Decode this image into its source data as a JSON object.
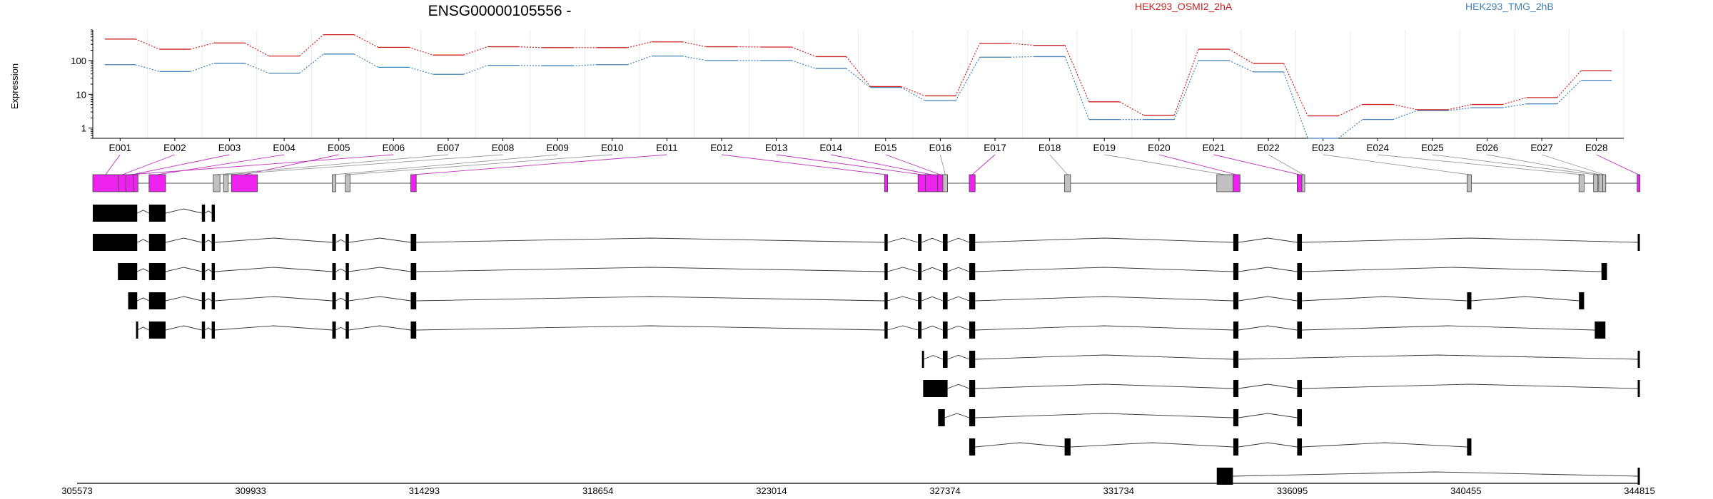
{
  "chart_data": {
    "type": "line",
    "title": "ENSG00000105556 -",
    "ylabel": "Expression",
    "y_scale": "log",
    "yticks": [
      "1",
      "10",
      "100"
    ],
    "ylim": [
      0.5,
      800
    ],
    "grid": true,
    "legend_placement": "top-right",
    "categories": [
      "E001",
      "E002",
      "E003",
      "E004",
      "E005",
      "E006",
      "E007",
      "E008",
      "E009",
      "E010",
      "E011",
      "E012",
      "E013",
      "E014",
      "E015",
      "E016",
      "E017",
      "E018",
      "E019",
      "E020",
      "E021",
      "E022",
      "E023",
      "E024",
      "E025",
      "E026",
      "E027",
      "E028"
    ],
    "series": [
      {
        "name": "HEK293_OSMI2_2hA",
        "color": "#cc2222",
        "values": [
          430,
          215,
          330,
          135,
          580,
          245,
          145,
          255,
          240,
          240,
          355,
          255,
          250,
          130,
          17,
          9,
          320,
          280,
          6,
          2.4,
          215,
          82,
          2.3,
          5,
          3.5,
          5,
          8,
          50
        ]
      },
      {
        "name": "HEK293_TMG_2hB",
        "color": "#4682b4",
        "values": [
          75,
          47,
          83,
          42,
          155,
          63,
          39,
          72,
          70,
          75,
          135,
          100,
          100,
          58,
          16,
          6.5,
          125,
          130,
          1.8,
          1.8,
          100,
          46,
          0.5,
          1.8,
          3.3,
          4,
          5.2,
          26
        ]
      }
    ],
    "genomic_axis": {
      "range": [
        305573,
        344815
      ],
      "tick_labels": [
        "305573",
        "309933",
        "314293",
        "318654",
        "323014",
        "327374",
        "331734",
        "336095",
        "340455",
        "344815"
      ]
    },
    "gene_model_exons": [
      {
        "label": "E001",
        "start": 305573,
        "end": 306220,
        "status": "significant"
      },
      {
        "label": "E002",
        "start": 306220,
        "end": 306420,
        "status": "significant"
      },
      {
        "label": "E003",
        "start": 306420,
        "end": 306720,
        "status": "significant"
      },
      {
        "label": "E004",
        "start": 307000,
        "end": 307420,
        "status": "significant"
      },
      {
        "label": "E005",
        "start": 309090,
        "end": 309750,
        "status": "significant"
      },
      {
        "label": "E006",
        "start": 306410,
        "end": 306600,
        "status": "significant"
      },
      {
        "label": "E007",
        "start": 308630,
        "end": 308800,
        "status": "other"
      },
      {
        "label": "E008",
        "start": 308890,
        "end": 309010,
        "status": "other"
      },
      {
        "label": "E009",
        "start": 311650,
        "end": 311740,
        "status": "other"
      },
      {
        "label": "E010",
        "start": 311980,
        "end": 312100,
        "status": "other"
      },
      {
        "label": "E011",
        "start": 313640,
        "end": 313780,
        "status": "significant"
      },
      {
        "label": "E012",
        "start": 325660,
        "end": 325740,
        "status": "significant"
      },
      {
        "label": "E013",
        "start": 326510,
        "end": 326700,
        "status": "significant"
      },
      {
        "label": "E014",
        "start": 326700,
        "end": 327010,
        "status": "significant"
      },
      {
        "label": "E015",
        "start": 327010,
        "end": 327140,
        "status": "significant"
      },
      {
        "label": "E016",
        "start": 327140,
        "end": 327260,
        "status": "other"
      },
      {
        "label": "E017",
        "start": 327810,
        "end": 327960,
        "status": "significant"
      },
      {
        "label": "E018",
        "start": 330230,
        "end": 330380,
        "status": "other"
      },
      {
        "label": "E019",
        "start": 334090,
        "end": 334500,
        "status": "other"
      },
      {
        "label": "E020",
        "start": 334500,
        "end": 334680,
        "status": "significant"
      },
      {
        "label": "E021",
        "start": 336130,
        "end": 336250,
        "status": "significant"
      },
      {
        "label": "E022",
        "start": 336250,
        "end": 336320,
        "status": "other"
      },
      {
        "label": "E023",
        "start": 340440,
        "end": 340550,
        "status": "other"
      },
      {
        "label": "E024",
        "start": 343280,
        "end": 343410,
        "status": "other"
      },
      {
        "label": "E025",
        "start": 343650,
        "end": 343760,
        "status": "other"
      },
      {
        "label": "E026",
        "start": 343780,
        "end": 343880,
        "status": "other"
      },
      {
        "label": "E027",
        "start": 343880,
        "end": 343960,
        "status": "other"
      },
      {
        "label": "E028",
        "start": 344755,
        "end": 344815,
        "status": "significant"
      }
    ],
    "transcripts": [
      [
        [
          305573,
          306700
        ],
        [
          307000,
          307420
        ],
        [
          308340,
          308420
        ],
        [
          308590,
          308670
        ]
      ],
      [
        [
          305573,
          306700
        ],
        [
          307000,
          307420
        ],
        [
          308340,
          308420
        ],
        [
          308590,
          308670
        ],
        [
          311650,
          311740
        ],
        [
          311990,
          312070
        ],
        [
          313640,
          313780
        ],
        [
          325660,
          325740
        ],
        [
          326510,
          326600
        ],
        [
          327140,
          327260
        ],
        [
          327810,
          327960
        ],
        [
          334510,
          334640
        ],
        [
          336130,
          336250
        ],
        [
          344770,
          344815
        ]
      ],
      [
        [
          306210,
          306700
        ],
        [
          307000,
          307420
        ],
        [
          308340,
          308420
        ],
        [
          308590,
          308670
        ],
        [
          311650,
          311740
        ],
        [
          311990,
          312070
        ],
        [
          313640,
          313780
        ],
        [
          325660,
          325740
        ],
        [
          326510,
          326600
        ],
        [
          327140,
          327260
        ],
        [
          327810,
          327960
        ],
        [
          334510,
          334640
        ],
        [
          336130,
          336250
        ],
        [
          343850,
          343990
        ]
      ],
      [
        [
          306470,
          306700
        ],
        [
          307000,
          307420
        ],
        [
          308340,
          308420
        ],
        [
          308590,
          308670
        ],
        [
          311650,
          311740
        ],
        [
          311990,
          312070
        ],
        [
          313640,
          313780
        ],
        [
          325660,
          325740
        ],
        [
          326510,
          326600
        ],
        [
          327140,
          327260
        ],
        [
          327810,
          327960
        ],
        [
          334510,
          334640
        ],
        [
          336130,
          336250
        ],
        [
          340440,
          340550
        ],
        [
          343280,
          343410
        ]
      ],
      [
        [
          306670,
          306700
        ],
        [
          307000,
          307420
        ],
        [
          308340,
          308420
        ],
        [
          308590,
          308670
        ],
        [
          311650,
          311740
        ],
        [
          311990,
          312070
        ],
        [
          313640,
          313780
        ],
        [
          325660,
          325740
        ],
        [
          326510,
          326600
        ],
        [
          327140,
          327260
        ],
        [
          327810,
          327960
        ],
        [
          334510,
          334640
        ],
        [
          336130,
          336250
        ],
        [
          343680,
          343950
        ]
      ],
      [
        [
          326610,
          326650
        ],
        [
          327140,
          327260
        ],
        [
          327810,
          327960
        ],
        [
          334510,
          334640
        ],
        [
          344770,
          344815
        ]
      ],
      [
        [
          326640,
          327260
        ],
        [
          327810,
          327960
        ],
        [
          334510,
          334640
        ],
        [
          336130,
          336250
        ],
        [
          344770,
          344815
        ]
      ],
      [
        [
          327020,
          327190
        ],
        [
          327810,
          327960
        ],
        [
          334510,
          334640
        ],
        [
          336130,
          336250
        ]
      ],
      [
        [
          327810,
          327960
        ],
        [
          330230,
          330380
        ],
        [
          334510,
          334640
        ],
        [
          336130,
          336250
        ],
        [
          340440,
          340550
        ]
      ],
      [
        [
          334090,
          334500
        ],
        [
          344770,
          344815
        ]
      ]
    ]
  }
}
